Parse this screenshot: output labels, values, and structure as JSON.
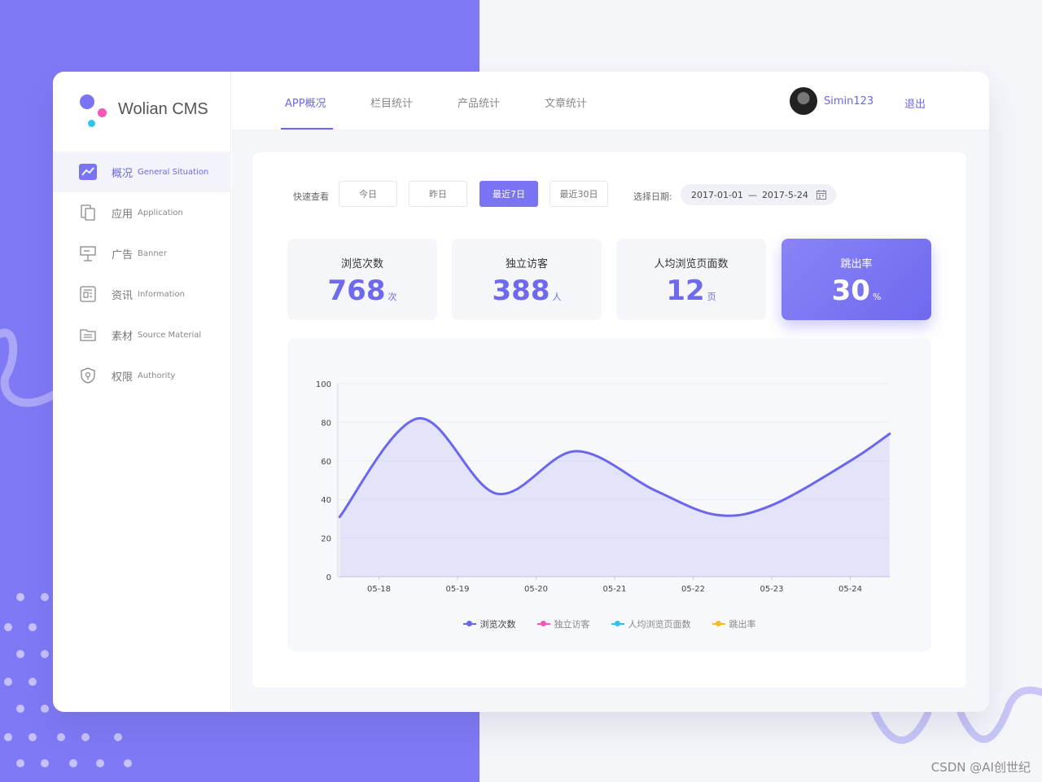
{
  "app": {
    "title": "Wolian CMS"
  },
  "sidebar": {
    "items": [
      {
        "cn": "概况",
        "en": "General Situation",
        "icon": "trend-chart-icon",
        "active": true
      },
      {
        "cn": "应用",
        "en": "Application",
        "icon": "copy-icon",
        "active": false
      },
      {
        "cn": "广告",
        "en": "Banner",
        "icon": "billboard-icon",
        "active": false
      },
      {
        "cn": "资讯",
        "en": "Information",
        "icon": "news-icon",
        "active": false
      },
      {
        "cn": "素材",
        "en": "Source Material",
        "icon": "folder-icon",
        "active": false
      },
      {
        "cn": "权限",
        "en": "Authority",
        "icon": "shield-icon",
        "active": false
      }
    ]
  },
  "topbar": {
    "tabs": [
      {
        "label": "APP概况",
        "active": true
      },
      {
        "label": "栏目统计",
        "active": false
      },
      {
        "label": "产品统计",
        "active": false
      },
      {
        "label": "文章统计",
        "active": false
      }
    ],
    "username": "Simin123",
    "logout": "退出"
  },
  "filters": {
    "label": "快速查看",
    "buttons": [
      {
        "label": "今日",
        "active": false
      },
      {
        "label": "昨日",
        "active": false
      },
      {
        "label": "最近7日",
        "active": true
      },
      {
        "label": "最近30日",
        "active": false
      }
    ],
    "date_label": "选择日期:",
    "date_start": "2017-01-01",
    "date_sep": "—",
    "date_end": "2017-5-24"
  },
  "stats": [
    {
      "title": "浏览次数",
      "value": "768",
      "unit": "次",
      "active": false
    },
    {
      "title": "独立访客",
      "value": "388",
      "unit": "人",
      "active": false
    },
    {
      "title": "人均浏览页面数",
      "value": "12",
      "unit": "页",
      "active": false
    },
    {
      "title": "跳出率",
      "value": "30",
      "unit": "%",
      "active": true
    }
  ],
  "colors": {
    "accent": "#6c66ee",
    "pink": "#f457b8",
    "cyan": "#30c3ea",
    "yellow": "#f7b924",
    "bg_purple": "#7f79f5"
  },
  "chart_data": {
    "type": "area",
    "x": [
      "05-18",
      "05-19",
      "05-20",
      "05-21",
      "05-22",
      "05-23",
      "05-24"
    ],
    "ylim": [
      0,
      100
    ],
    "yticks": [
      0,
      20,
      40,
      60,
      80,
      100
    ],
    "series": [
      {
        "name": "浏览次数",
        "color": "#6c66ee",
        "points": [
          [
            -0.5,
            31
          ],
          [
            0.5,
            82
          ],
          [
            1.5,
            43
          ],
          [
            2.5,
            65
          ],
          [
            3.5,
            45
          ],
          [
            4.3,
            32
          ],
          [
            5.0,
            37
          ],
          [
            6.0,
            60
          ],
          [
            6.5,
            74
          ]
        ]
      }
    ],
    "legend": [
      {
        "name": "浏览次数",
        "color": "#6c66ee",
        "active": true
      },
      {
        "name": "独立访客",
        "color": "#f457b8",
        "active": false
      },
      {
        "name": "人均浏览页面数",
        "color": "#30c3ea",
        "active": false
      },
      {
        "name": "跳出率",
        "color": "#f7b924",
        "active": false
      }
    ],
    "grid": true
  },
  "watermark": "CSDN @AI创世纪"
}
